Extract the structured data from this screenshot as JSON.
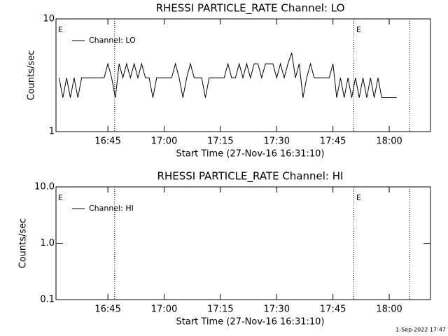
{
  "chart_data": [
    {
      "type": "line",
      "title": "RHESSI PARTICLE_RATE Channel: LO",
      "xlabel": "Start Time (27-Nov-16 16:31:10)",
      "ylabel": "Counts/sec",
      "log_y": true,
      "xlim": [
        991.17,
        1091
      ],
      "ylim": [
        1,
        10
      ],
      "xticks": [
        {
          "value": 1005,
          "label": "16:45"
        },
        {
          "value": 1020,
          "label": "17:00"
        },
        {
          "value": 1035,
          "label": "17:15"
        },
        {
          "value": 1050,
          "label": "17:30"
        },
        {
          "value": 1065,
          "label": "17:45"
        },
        {
          "value": 1080,
          "label": "18:00"
        }
      ],
      "yticks": [
        1,
        10
      ],
      "vlines": [
        1006.8,
        1070.5,
        1085.4
      ],
      "annotations": [
        {
          "x": 991.7,
          "text": "E"
        },
        {
          "x": 1071.2,
          "text": "E"
        }
      ],
      "x": [
        992,
        993,
        994,
        995,
        996,
        997,
        998,
        999,
        1000,
        1001,
        1002,
        1003,
        1004,
        1005,
        1006,
        1007,
        1008,
        1009,
        1010,
        1011,
        1012,
        1013,
        1014,
        1015,
        1016,
        1017,
        1018,
        1019,
        1020,
        1021,
        1022,
        1023,
        1024,
        1025,
        1026,
        1027,
        1028,
        1029,
        1030,
        1031,
        1032,
        1033,
        1034,
        1035,
        1036,
        1037,
        1038,
        1039,
        1040,
        1041,
        1042,
        1043,
        1044,
        1045,
        1046,
        1047,
        1048,
        1049,
        1050,
        1051,
        1052,
        1053,
        1054,
        1055,
        1056,
        1057,
        1058,
        1059,
        1060,
        1061,
        1062,
        1063,
        1064,
        1065,
        1066,
        1067,
        1068,
        1069,
        1070,
        1071,
        1072,
        1073,
        1074,
        1075,
        1076,
        1077,
        1078,
        1079,
        1080,
        1081,
        1082
      ],
      "series": [
        {
          "name": "Channel: LO",
          "color": "#000000",
          "values": [
            3,
            2,
            3,
            2,
            3,
            2,
            3,
            3,
            3,
            3,
            3,
            3,
            3,
            4,
            3,
            2,
            4,
            3,
            4,
            3,
            4,
            3,
            4,
            3,
            3,
            2,
            3,
            3,
            3,
            3,
            3,
            4,
            3,
            2,
            3,
            4,
            3,
            3,
            3,
            2,
            3,
            3,
            3,
            3,
            3,
            4,
            3,
            3,
            4,
            3,
            4,
            3,
            4,
            4,
            3,
            4,
            4,
            4,
            3,
            4,
            3,
            4,
            5,
            3,
            4,
            2,
            3,
            4,
            3,
            3,
            3,
            3,
            3,
            4,
            2,
            3,
            2,
            3,
            2,
            3,
            2,
            3,
            2,
            3,
            2,
            3,
            2,
            2,
            2,
            2,
            2
          ]
        }
      ]
    },
    {
      "type": "line",
      "title": "RHESSI PARTICLE_RATE Channel: HI",
      "xlabel": "Start Time (27-Nov-16 16:31:10)",
      "ylabel": "Counts/sec",
      "log_y": true,
      "xlim": [
        991.17,
        1091
      ],
      "ylim": [
        0.1,
        10
      ],
      "xticks": [
        {
          "value": 1005,
          "label": "16:45"
        },
        {
          "value": 1020,
          "label": "17:00"
        },
        {
          "value": 1035,
          "label": "17:15"
        },
        {
          "value": 1050,
          "label": "17:30"
        },
        {
          "value": 1065,
          "label": "17:45"
        },
        {
          "value": 1080,
          "label": "18:00"
        }
      ],
      "yticks": [
        0.1,
        {
          "value": 1,
          "label": "1.0"
        },
        {
          "value": 10,
          "label": "10.0"
        }
      ],
      "vlines": [
        1006.8,
        1070.5,
        1085.4
      ],
      "annotations": [
        {
          "x": 991.7,
          "text": "E"
        },
        {
          "x": 1071.2,
          "text": "E"
        }
      ],
      "x": [],
      "series": [
        {
          "name": "Channel: HI",
          "color": "#000000",
          "values": []
        }
      ]
    }
  ],
  "footer": "1-Sep-2022 17:47"
}
